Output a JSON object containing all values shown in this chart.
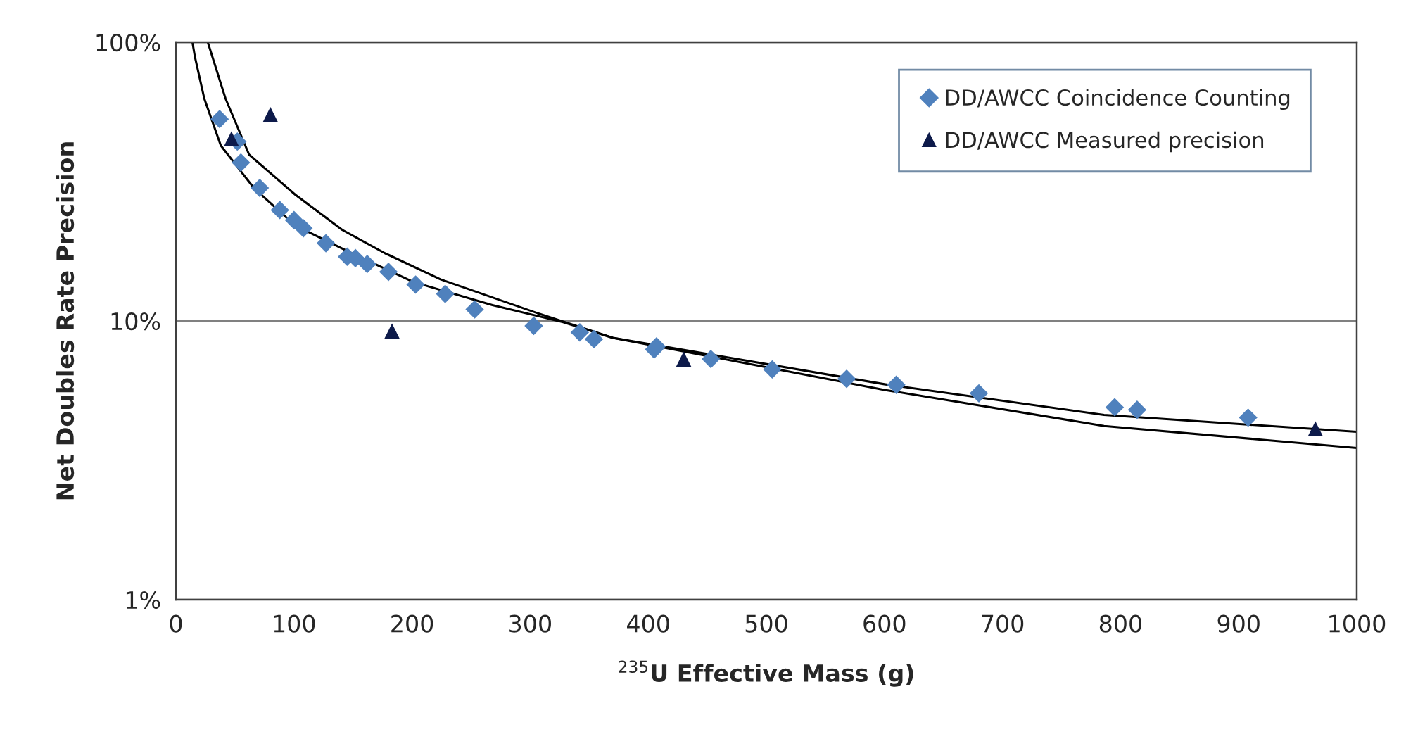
{
  "chart_data": {
    "type": "scatter",
    "xlabel": "$^{235}$U Effective Mass (g)",
    "ylabel": "Net Doubles Rate Precision",
    "log": "y",
    "grid": "y",
    "legend": "top right",
    "xlim": [
      0,
      1000
    ],
    "xticks": [
      0,
      100,
      200,
      300,
      400,
      500,
      600,
      700,
      800,
      900,
      1000
    ],
    "ylim": [
      1,
      100
    ],
    "yticks": [
      {
        "value": 1,
        "label": "1%"
      },
      {
        "value": 10,
        "label": "10%"
      },
      {
        "value": 100,
        "label": "100%"
      }
    ],
    "series": [
      {
        "name": "DD/AWCC Coincidence Counting",
        "marker": "diamond",
        "color": "#4f81bd",
        "x": [
          37,
          52,
          55,
          71,
          88,
          100,
          108,
          127,
          145,
          152,
          162,
          180,
          203,
          228,
          253,
          303,
          342,
          354,
          405,
          407,
          453,
          505,
          568,
          610,
          680,
          795,
          814,
          908
        ],
        "values": [
          53,
          44,
          37,
          30,
          25,
          23,
          21.5,
          19,
          17,
          16.8,
          16,
          15,
          13.5,
          12.5,
          11,
          9.6,
          9.1,
          8.6,
          7.9,
          8.1,
          7.3,
          6.7,
          6.2,
          5.9,
          5.5,
          4.9,
          4.8,
          4.5
        ]
      },
      {
        "name": "DD/AWCC Measured precision",
        "marker": "triangle",
        "color": "#0d1a4a",
        "x": [
          47,
          80,
          183,
          430,
          965
        ],
        "values": [
          45,
          55,
          9.2,
          7.3,
          4.1
        ]
      },
      {
        "type": "line",
        "marker": "none",
        "color": "#000000",
        "x": [
          27,
          42,
          62,
          101,
          141,
          177,
          224,
          308,
          370,
          600,
          786,
          1000
        ],
        "values": [
          100,
          62.8,
          39.5,
          28.4,
          21.2,
          17.5,
          14.1,
          10.6,
          8.7,
          5.66,
          4.2,
          3.5
        ]
      },
      {
        "type": "line",
        "marker": "none",
        "color": "#000000",
        "x": [
          14,
          16,
          24,
          38,
          66,
          101,
          149,
          201,
          268,
          328,
          370,
          600,
          786,
          1000
        ],
        "values": [
          100,
          89,
          62.8,
          42.6,
          30,
          22,
          17.5,
          13.8,
          11.4,
          9.9,
          8.7,
          5.93,
          4.6,
          4.0
        ]
      }
    ]
  }
}
